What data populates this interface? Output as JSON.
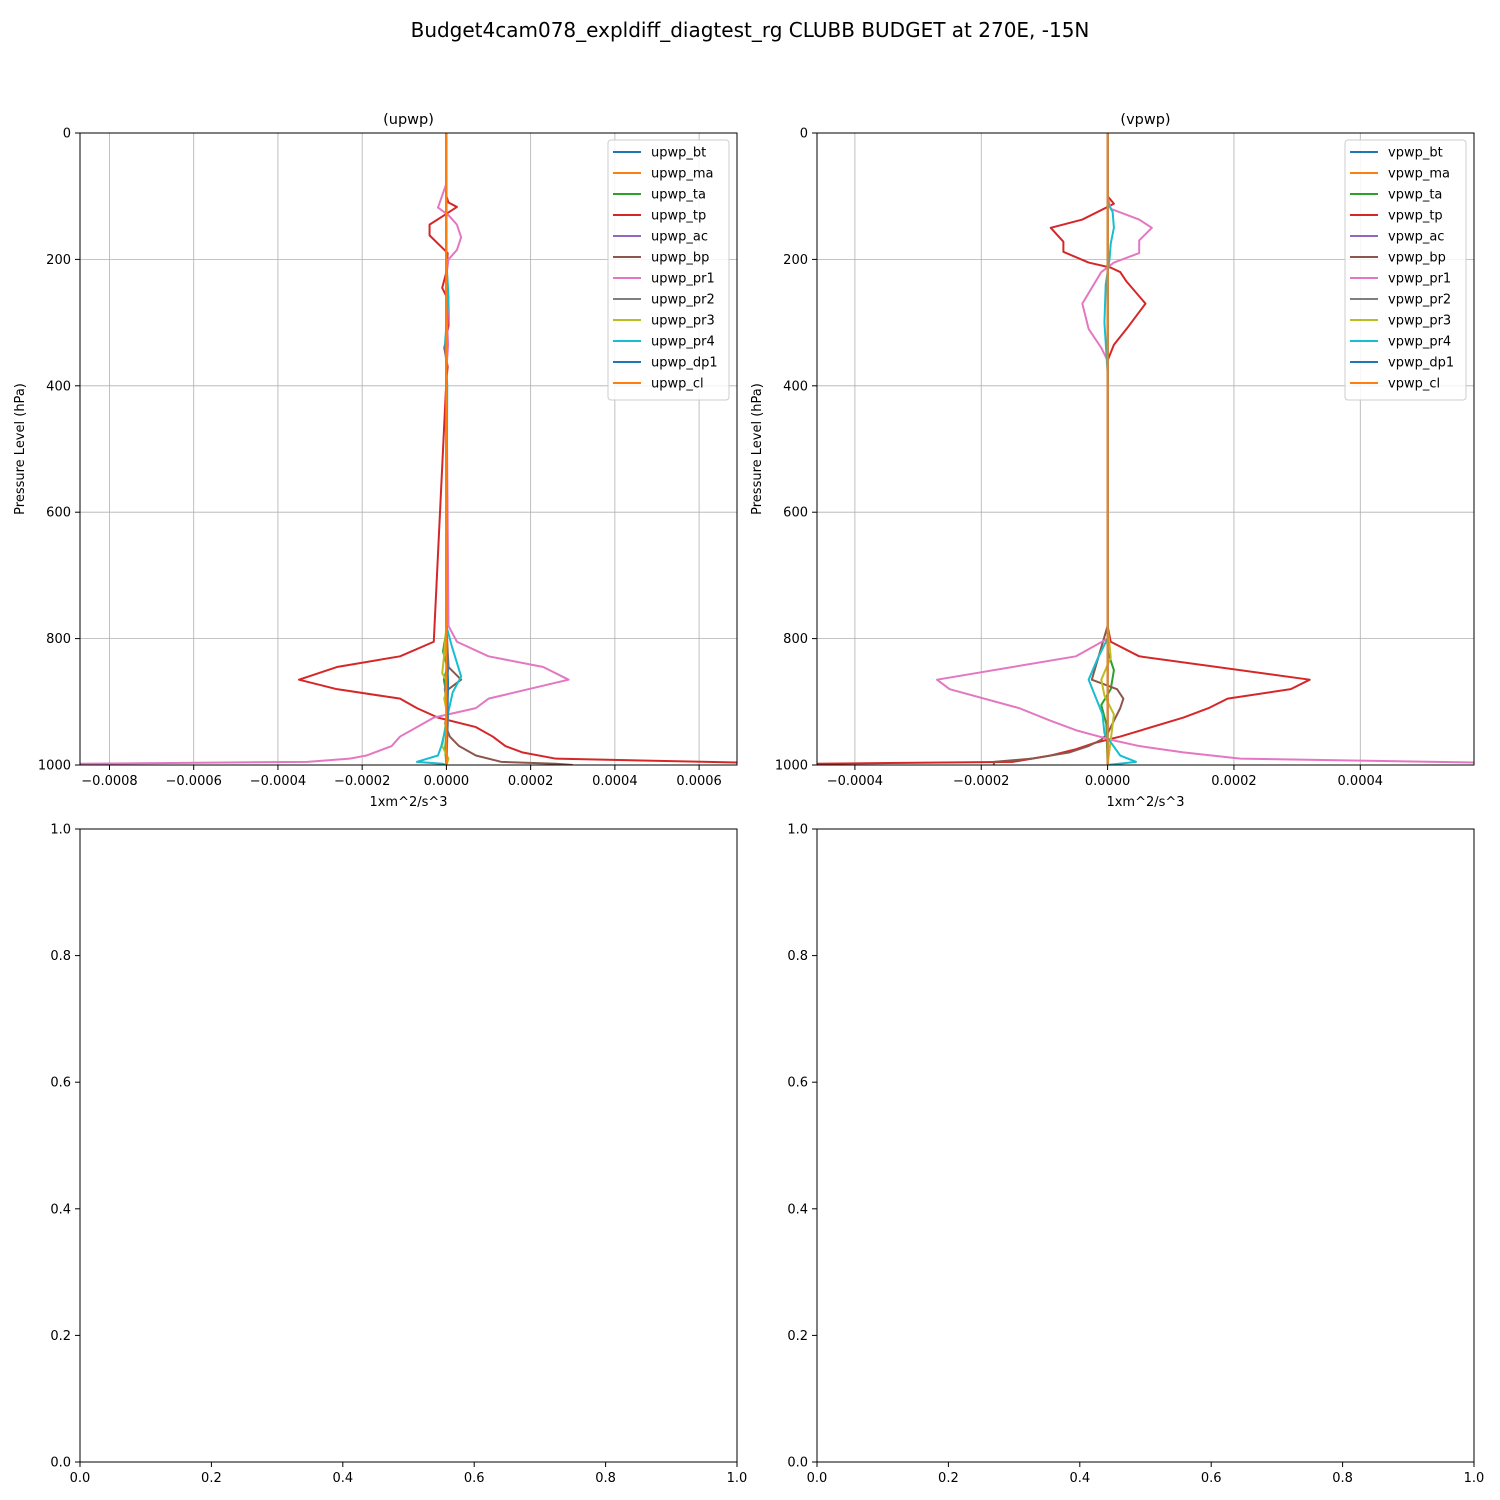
{
  "figure": {
    "suptitle": "Budget4cam078_expldiff_diagtest_rg CLUBB BUDGET at 270E, -15N"
  },
  "chart_data": [
    {
      "type": "line",
      "title": "(upwp)",
      "xlabel": "1xm^2/s^3",
      "ylabel": "Pressure Level (hPa)",
      "xlim": [
        -0.00087,
        0.00069
      ],
      "ylim": [
        1000,
        0
      ],
      "xticks": [
        "−0.0008",
        "−0.0006",
        "−0.0004",
        "−0.0002",
        "0.0000",
        "0.0002",
        "0.0004",
        "0.0006"
      ],
      "xtick_values": [
        -0.0008,
        -0.0006,
        -0.0004,
        -0.0002,
        0,
        0.0002,
        0.0004,
        0.0006
      ],
      "yticks": [
        "0",
        "200",
        "400",
        "600",
        "800",
        "1000"
      ],
      "ytick_values": [
        0,
        200,
        400,
        600,
        800,
        1000
      ],
      "grid": true,
      "legend_position": "top-right",
      "series": [
        {
          "name": "upwp_bt",
          "color": "#1f77b4",
          "x": [
            0,
            0,
            0,
            0,
            0,
            0,
            0,
            0
          ],
          "y": [
            0,
            200,
            400,
            600,
            800,
            900,
            970,
            1000
          ]
        },
        {
          "name": "upwp_ma",
          "color": "#ff7f0e",
          "x": [
            0,
            0,
            0,
            0,
            0,
            0
          ],
          "y": [
            0,
            200,
            400,
            600,
            800,
            1000
          ]
        },
        {
          "name": "upwp_ta",
          "color": "#2ca02c",
          "x": [
            0,
            0,
            0,
            0,
            2e-06,
            -8e-06,
            2e-06,
            -6e-06,
            3e-06,
            2e-06,
            -3e-06,
            0
          ],
          "y": [
            0,
            100,
            200,
            400,
            780,
            820,
            845,
            865,
            900,
            930,
            975,
            1000
          ]
        },
        {
          "name": "upwp_tp",
          "color": "#d62728",
          "x": [
            0,
            0,
            0,
            5e-06,
            2.5e-05,
            -5e-06,
            -4e-05,
            -4e-05,
            3e-06,
            0,
            -1e-05,
            5e-06,
            5e-06,
            -5e-06,
            3e-06,
            0,
            -3e-05,
            -0.00011,
            -0.00026,
            -0.00035,
            -0.00026,
            -0.00011,
            -7e-05,
            -2e-05,
            7e-05,
            0.00011,
            0.00014,
            0.00018,
            0.00026,
            0.00069
          ],
          "y": [
            0,
            80,
            100,
            110,
            117,
            130,
            145,
            162,
            190,
            220,
            245,
            265,
            305,
            340,
            370,
            390,
            805,
            828,
            845,
            865,
            880,
            895,
            910,
            925,
            940,
            955,
            970,
            980,
            990,
            996
          ]
        },
        {
          "name": "upwp_ac",
          "color": "#9467bd",
          "x": [
            0,
            0,
            0,
            0,
            0
          ],
          "y": [
            0,
            200,
            400,
            800,
            1000
          ]
        },
        {
          "name": "upwp_bp",
          "color": "#8c564b",
          "x": [
            0,
            0,
            0,
            5e-06,
            3.5e-05,
            5e-06,
            -5e-06,
            3e-06,
            -3e-06,
            8e-06,
            3e-05,
            7e-05,
            0.00013,
            0.00026,
            0.0003,
            0.0003
          ],
          "y": [
            0,
            400,
            780,
            845,
            865,
            880,
            895,
            915,
            935,
            955,
            970,
            985,
            995,
            998,
            1000,
            1000
          ]
        },
        {
          "name": "upwp_pr1",
          "color": "#e377c2",
          "x": [
            0,
            0,
            -2e-05,
            5e-06,
            2.5e-05,
            3.5e-05,
            2.5e-05,
            5e-06,
            0,
            5e-06,
            2e-06,
            4e-06,
            0,
            5e-06,
            2.5e-05,
            0.0001,
            0.00023,
            0.00029,
            0.0001,
            7e-05,
            -3e-05,
            -7e-05,
            -0.00011,
            -0.00013,
            -0.00019,
            -0.00023,
            -0.00033,
            -0.00087,
            -0.00087
          ],
          "y": [
            0,
            80,
            118,
            130,
            145,
            165,
            185,
            200,
            225,
            265,
            305,
            335,
            375,
            780,
            805,
            828,
            845,
            865,
            895,
            910,
            925,
            940,
            955,
            970,
            985,
            990,
            995,
            998,
            1000
          ]
        },
        {
          "name": "upwp_pr2",
          "color": "#7f7f7f",
          "x": [
            0,
            0,
            0,
            4e-06,
            -4e-06,
            4e-06,
            0
          ],
          "y": [
            0,
            400,
            780,
            850,
            880,
            920,
            1000
          ]
        },
        {
          "name": "upwp_pr3",
          "color": "#bcbd22",
          "x": [
            0,
            0,
            0,
            -6e-06,
            -1e-05,
            4e-06,
            -5e-06,
            2e-06,
            -1e-05,
            5e-06,
            0
          ],
          "y": [
            0,
            400,
            780,
            830,
            855,
            870,
            895,
            920,
            970,
            990,
            1000
          ]
        },
        {
          "name": "upwp_pr4",
          "color": "#17becf",
          "x": [
            0,
            0,
            5e-06,
            -3e-06,
            2e-06,
            0,
            1.2e-05,
            3.5e-05,
            1.5e-05,
            5e-06,
            -3e-06,
            -1.2e-05,
            -2e-05,
            -7e-05,
            -1e-05,
            0
          ],
          "y": [
            0,
            200,
            260,
            330,
            400,
            780,
            810,
            860,
            885,
            915,
            945,
            970,
            985,
            995,
            998,
            1000
          ]
        },
        {
          "name": "upwp_dp1",
          "color": "#1f77b4",
          "x": [
            0,
            0,
            0,
            4e-06,
            0
          ],
          "y": [
            0,
            400,
            800,
            870,
            1000
          ]
        },
        {
          "name": "upwp_cl",
          "color": "#ff7f0e",
          "x": [
            0,
            0,
            0,
            0
          ],
          "y": [
            0,
            400,
            800,
            1000
          ]
        }
      ]
    },
    {
      "type": "line",
      "title": "(vpwp)",
      "xlabel": "1xm^2/s^3",
      "ylabel": "Pressure Level (hPa)",
      "xlim": [
        -0.00046,
        0.00058
      ],
      "ylim": [
        1000,
        0
      ],
      "xticks": [
        "−0.0004",
        "−0.0002",
        "0.0000",
        "0.0002",
        "0.0004"
      ],
      "xtick_values": [
        -0.0004,
        -0.0002,
        0,
        0.0002,
        0.0004
      ],
      "yticks": [
        "0",
        "200",
        "400",
        "600",
        "800",
        "1000"
      ],
      "ytick_values": [
        0,
        200,
        400,
        600,
        800,
        1000
      ],
      "grid": true,
      "legend_position": "top-right",
      "series": [
        {
          "name": "vpwp_bt",
          "color": "#1f77b4",
          "x": [
            0,
            0,
            0,
            0
          ],
          "y": [
            0,
            400,
            800,
            1000
          ]
        },
        {
          "name": "vpwp_ma",
          "color": "#ff7f0e",
          "x": [
            0,
            0,
            0,
            0
          ],
          "y": [
            0,
            400,
            800,
            1000
          ]
        },
        {
          "name": "vpwp_ta",
          "color": "#2ca02c",
          "x": [
            0,
            0,
            0,
            0,
            1e-05,
            5e-06,
            -1e-05,
            -2e-06,
            0
          ],
          "y": [
            0,
            400,
            780,
            820,
            850,
            880,
            905,
            935,
            1000
          ]
        },
        {
          "name": "vpwp_tp",
          "color": "#d62728",
          "x": [
            0,
            0,
            1e-05,
            -4e-05,
            -9e-05,
            -7e-05,
            -7e-05,
            -3e-05,
            5e-06,
            2e-05,
            3e-05,
            6e-05,
            3e-05,
            1e-05,
            0,
            0,
            5e-06,
            5e-05,
            0.00032,
            0.00029,
            0.00019,
            0.00016,
            0.00012,
            2e-05,
            -2e-05,
            -5e-05,
            -9e-05,
            -0.00015,
            -0.00046
          ],
          "y": [
            0,
            100,
            112,
            137,
            150,
            172,
            188,
            205,
            213,
            220,
            235,
            270,
            310,
            335,
            360,
            780,
            805,
            828,
            865,
            880,
            895,
            910,
            925,
            955,
            965,
            975,
            985,
            995,
            998
          ]
        },
        {
          "name": "vpwp_ac",
          "color": "#9467bd",
          "x": [
            0,
            0,
            0,
            0
          ],
          "y": [
            0,
            400,
            800,
            1000
          ]
        },
        {
          "name": "vpwp_bp",
          "color": "#8c564b",
          "x": [
            0,
            0,
            0,
            -2.5e-05,
            1.5e-05,
            2.5e-05,
            2e-05,
            0,
            -1e-05,
            -3e-05,
            -6e-05,
            -0.00012,
            -0.00018,
            -0.00018
          ],
          "y": [
            0,
            400,
            780,
            865,
            880,
            895,
            910,
            950,
            960,
            970,
            980,
            990,
            995,
            1000
          ]
        },
        {
          "name": "vpwp_pr1",
          "color": "#e377c2",
          "x": [
            0,
            0,
            5e-06,
            5e-05,
            7e-05,
            5e-05,
            5e-05,
            1e-05,
            -1e-05,
            -4e-05,
            -3e-05,
            -1e-05,
            0,
            0,
            -5e-05,
            -0.00027,
            -0.00025,
            -0.00014,
            -9e-05,
            -5e-05,
            5e-06,
            5e-05,
            0.00012,
            0.00021,
            0.00058
          ],
          "y": [
            0,
            100,
            120,
            137,
            150,
            170,
            190,
            205,
            220,
            270,
            310,
            340,
            360,
            800,
            828,
            865,
            880,
            910,
            930,
            945,
            960,
            970,
            980,
            990,
            996
          ]
        },
        {
          "name": "vpwp_pr2",
          "color": "#7f7f7f",
          "x": [
            0,
            0,
            0,
            0
          ],
          "y": [
            0,
            400,
            800,
            1000
          ]
        },
        {
          "name": "vpwp_pr3",
          "color": "#bcbd22",
          "x": [
            0,
            0,
            0,
            5e-06,
            -1e-05,
            -5e-06,
            1e-05,
            5e-06,
            0
          ],
          "y": [
            0,
            400,
            780,
            830,
            865,
            890,
            920,
            960,
            1000
          ]
        },
        {
          "name": "vpwp_pr4",
          "color": "#17becf",
          "x": [
            0,
            0,
            8e-06,
            1e-05,
            5e-06,
            3e-06,
            -3e-06,
            -5e-06,
            0,
            0,
            -1.5e-05,
            -3e-05,
            -2e-05,
            -8e-06,
            -5e-06,
            2e-05,
            4.5e-05,
            0
          ],
          "y": [
            0,
            110,
            125,
            150,
            175,
            200,
            240,
            300,
            380,
            800,
            830,
            865,
            890,
            920,
            950,
            985,
            995,
            1000
          ]
        },
        {
          "name": "vpwp_dp1",
          "color": "#1f77b4",
          "x": [
            0,
            0,
            0,
            0
          ],
          "y": [
            0,
            400,
            800,
            1000
          ]
        },
        {
          "name": "vpwp_cl",
          "color": "#ff7f0e",
          "x": [
            0,
            0,
            0,
            0
          ],
          "y": [
            0,
            400,
            800,
            1000
          ]
        }
      ]
    },
    {
      "type": "line",
      "title": "",
      "xlabel": "",
      "ylabel": "",
      "xlim": [
        0,
        1
      ],
      "ylim": [
        0,
        1
      ],
      "xticks": [
        "0.0",
        "0.2",
        "0.4",
        "0.6",
        "0.8",
        "1.0"
      ],
      "xtick_values": [
        0,
        0.2,
        0.4,
        0.6,
        0.8,
        1.0
      ],
      "yticks": [
        "0.0",
        "0.2",
        "0.4",
        "0.6",
        "0.8",
        "1.0"
      ],
      "ytick_values": [
        0,
        0.2,
        0.4,
        0.6,
        0.8,
        1.0
      ],
      "grid": false,
      "series": []
    },
    {
      "type": "line",
      "title": "",
      "xlabel": "",
      "ylabel": "",
      "xlim": [
        0,
        1
      ],
      "ylim": [
        0,
        1
      ],
      "xticks": [
        "0.0",
        "0.2",
        "0.4",
        "0.6",
        "0.8",
        "1.0"
      ],
      "xtick_values": [
        0,
        0.2,
        0.4,
        0.6,
        0.8,
        1.0
      ],
      "yticks": [
        "0.0",
        "0.2",
        "0.4",
        "0.6",
        "0.8",
        "1.0"
      ],
      "ytick_values": [
        0,
        0.2,
        0.4,
        0.6,
        0.8,
        1.0
      ],
      "grid": false,
      "series": []
    }
  ]
}
